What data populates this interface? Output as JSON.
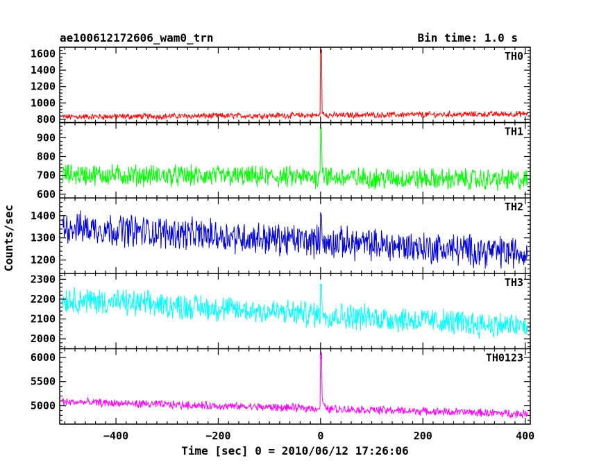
{
  "chart_data": {
    "type": "line",
    "title_left": "ae100612172606_wam0_trn",
    "title_right": "Bin time: 1.0 s",
    "xlabel": "Time [sec] 0 = 2010/06/12 17:26:06",
    "ylabel": "Counts/sec",
    "x_range": [
      -510,
      410
    ],
    "x_ticks": [
      -400,
      -200,
      0,
      200,
      400
    ],
    "x_tick_labels": [
      "−400",
      "−200",
      "0",
      "200",
      "400"
    ],
    "panels": [
      {
        "name": "TH0",
        "color": "#ff0000",
        "ylim": [
          760,
          1680
        ],
        "yticks": [
          800,
          1000,
          1200,
          1400,
          1600
        ],
        "baseline_start": 830,
        "baseline_end": 865,
        "noise": 60,
        "peak": 1680,
        "tail": 900
      },
      {
        "name": "TH1",
        "color": "#00ff00",
        "ylim": [
          580,
          980
        ],
        "yticks": [
          600,
          700,
          800,
          900
        ],
        "baseline_start": 705,
        "baseline_end": 675,
        "noise": 95,
        "peak": 960,
        "tail": 760
      },
      {
        "name": "TH2",
        "color": "#0000e0",
        "ylim": [
          1140,
          1480
        ],
        "yticks": [
          1200,
          1300,
          1400
        ],
        "baseline_start": 1350,
        "baseline_end": 1230,
        "noise": 120,
        "peak": 1420,
        "tail": 1310
      },
      {
        "name": "TH3",
        "color": "#00ffff",
        "ylim": [
          1950,
          2330
        ],
        "yticks": [
          2000,
          2100,
          2200,
          2300
        ],
        "baseline_start": 2200,
        "baseline_end": 2060,
        "noise": 110,
        "peak": 2280,
        "tail": 2150
      },
      {
        "name": "TH0123",
        "color": "#ff00ff",
        "ylim": [
          4620,
          6180
        ],
        "yticks": [
          5000,
          5500,
          6000
        ],
        "baseline_start": 5080,
        "baseline_end": 4830,
        "noise": 140,
        "peak": 6150,
        "tail": 5200
      }
    ],
    "burst_time": 0,
    "grid": false,
    "legend": "none"
  }
}
